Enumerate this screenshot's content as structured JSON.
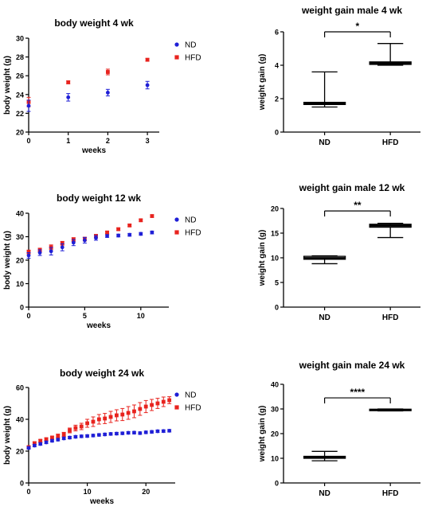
{
  "colors": {
    "nd": "#1f1fd6",
    "hfd": "#e8231e",
    "axis": "#000000"
  },
  "chart_data": [
    {
      "id": "bw4",
      "type": "scatter",
      "title": "body weight 4 wk",
      "xlabel": "weeks",
      "ylabel": "body weight (g)",
      "xlim": [
        0,
        3.3
      ],
      "ylim": [
        20,
        30
      ],
      "xticks": [
        0,
        1,
        2,
        3
      ],
      "yticks": [
        20,
        22,
        24,
        26,
        28,
        30
      ],
      "legend": "top-right",
      "series": [
        {
          "name": "ND",
          "x": [
            0,
            1,
            2,
            3
          ],
          "y": [
            22.8,
            23.7,
            24.2,
            25.0
          ],
          "err": [
            0.6,
            0.4,
            0.35,
            0.4
          ]
        },
        {
          "name": "HFD",
          "x": [
            0,
            1,
            2,
            3
          ],
          "y": [
            23.2,
            25.3,
            26.4,
            27.7
          ],
          "err": [
            0.5,
            0.15,
            0.3,
            0.15
          ]
        }
      ]
    },
    {
      "id": "wg4",
      "type": "box",
      "title": "weight gain male 4 wk",
      "xlabel": "",
      "ylabel": "weight gain (g)",
      "ylim": [
        0,
        6
      ],
      "yticks": [
        0,
        2,
        4,
        6
      ],
      "categories": [
        "ND",
        "HFD"
      ],
      "boxes": [
        {
          "min": 1.5,
          "q1": 1.65,
          "median": 1.72,
          "q3": 1.78,
          "max": 3.6
        },
        {
          "min": 4.0,
          "q1": 4.05,
          "median": 4.12,
          "q3": 4.2,
          "max": 5.3
        }
      ],
      "significance": "*",
      "sig_y": 6.0
    },
    {
      "id": "bw12",
      "type": "scatter",
      "title": "body weight 12 wk",
      "xlabel": "weeks",
      "ylabel": "body weight (g)",
      "xlim": [
        0,
        12.5
      ],
      "ylim": [
        0,
        40
      ],
      "xticks": [
        0,
        5,
        10
      ],
      "yticks": [
        0,
        10,
        20,
        30,
        40
      ],
      "legend": "top-right",
      "series": [
        {
          "name": "ND",
          "x": [
            0,
            1,
            2,
            3,
            4,
            5,
            6,
            7,
            8,
            9,
            10,
            11
          ],
          "y": [
            22,
            23.2,
            23.8,
            25.5,
            27.5,
            28.5,
            29.5,
            30.3,
            30.5,
            30.8,
            31.2,
            31.8
          ],
          "err": [
            1.2,
            1.2,
            1.6,
            1.5,
            1.3,
            1.2,
            1.0,
            0.6,
            0.6,
            0.6,
            0.6,
            0.6
          ]
        },
        {
          "name": "HFD",
          "x": [
            0,
            1,
            2,
            3,
            4,
            5,
            6,
            7,
            8,
            9,
            10,
            11
          ],
          "y": [
            23.5,
            24.3,
            25.5,
            27.2,
            28.8,
            29.0,
            30.2,
            31.8,
            33.2,
            34.8,
            37.0,
            38.8
          ],
          "err": [
            0.8,
            0.8,
            1.0,
            0.8,
            0.8,
            0.8,
            0.8,
            0.5,
            0.5,
            0.5,
            0.5,
            0.5
          ]
        }
      ]
    },
    {
      "id": "wg12",
      "type": "box",
      "title": "weight gain male 12 wk",
      "xlabel": "",
      "ylabel": "weight gain (g)",
      "ylim": [
        0,
        20
      ],
      "yticks": [
        0,
        5,
        10,
        15,
        20
      ],
      "categories": [
        "ND",
        "HFD"
      ],
      "boxes": [
        {
          "min": 8.8,
          "q1": 9.7,
          "median": 9.95,
          "q3": 10.3,
          "max": 10.4
        },
        {
          "min": 14.1,
          "q1": 16.2,
          "median": 16.5,
          "q3": 16.8,
          "max": 17.0
        }
      ],
      "significance": "**",
      "sig_y": 19.5
    },
    {
      "id": "bw24",
      "type": "scatter",
      "title": "body weight 24 wk",
      "xlabel": "weeks",
      "ylabel": "body weight (g)",
      "xlim": [
        0,
        25
      ],
      "ylim": [
        0,
        60
      ],
      "xticks": [
        0,
        10,
        20
      ],
      "yticks": [
        0,
        20,
        40,
        60
      ],
      "legend": "top-right",
      "series": [
        {
          "name": "ND",
          "x": [
            0,
            1,
            2,
            3,
            4,
            5,
            6,
            7,
            8,
            9,
            10,
            11,
            12,
            13,
            14,
            15,
            16,
            17,
            18,
            19,
            20,
            21,
            22,
            23,
            24
          ],
          "y": [
            22,
            23.5,
            24.5,
            25.5,
            26.5,
            27.2,
            28,
            28.5,
            29,
            29.3,
            29.5,
            29.8,
            30.2,
            30.5,
            30.8,
            31,
            31.2,
            31.5,
            31.6,
            31.3,
            31.8,
            32.1,
            32.5,
            32.6,
            32.8
          ],
          "err": [
            0.8,
            0.8,
            0.8,
            0.8,
            0.8,
            0.8,
            0.8,
            0.8,
            0.8,
            0.8,
            0.8,
            0.8,
            0.8,
            0.8,
            0.8,
            0.8,
            0.8,
            0.8,
            0.8,
            0.8,
            0.8,
            0.8,
            0.8,
            0.8,
            0.8
          ]
        },
        {
          "name": "HFD",
          "x": [
            0,
            1,
            2,
            3,
            4,
            5,
            6,
            7,
            8,
            9,
            10,
            11,
            12,
            13,
            14,
            15,
            16,
            17,
            18,
            19,
            20,
            21,
            22,
            23,
            24
          ],
          "y": [
            22.5,
            25,
            26.5,
            27.5,
            28.5,
            29.5,
            30.5,
            33,
            34.5,
            35.5,
            37.5,
            38.5,
            40,
            40.5,
            41.5,
            42.5,
            43,
            44,
            45,
            46.5,
            48,
            49,
            50,
            51,
            52
          ],
          "err": [
            0.8,
            0.8,
            0.8,
            0.8,
            1.0,
            1.2,
            1.3,
            1.5,
            1.8,
            2.0,
            2.5,
            3.0,
            3.0,
            3.2,
            3.5,
            3.5,
            3.8,
            4.0,
            4.0,
            4.0,
            3.8,
            3.5,
            3.2,
            3.0,
            2.2
          ]
        }
      ]
    },
    {
      "id": "wg24",
      "type": "box",
      "title": "weight gain male 24 wk",
      "xlabel": "",
      "ylabel": "weight gain (g)",
      "ylim": [
        0,
        40
      ],
      "yticks": [
        0,
        10,
        20,
        30,
        40
      ],
      "categories": [
        "ND",
        "HFD"
      ],
      "boxes": [
        {
          "min": 9.0,
          "q1": 10.0,
          "median": 10.4,
          "q3": 10.8,
          "max": 12.8
        },
        {
          "min": 29.2,
          "q1": 29.3,
          "median": 29.6,
          "q3": 29.9,
          "max": 30.0
        }
      ],
      "significance": "****",
      "sig_y": 34.5
    }
  ]
}
